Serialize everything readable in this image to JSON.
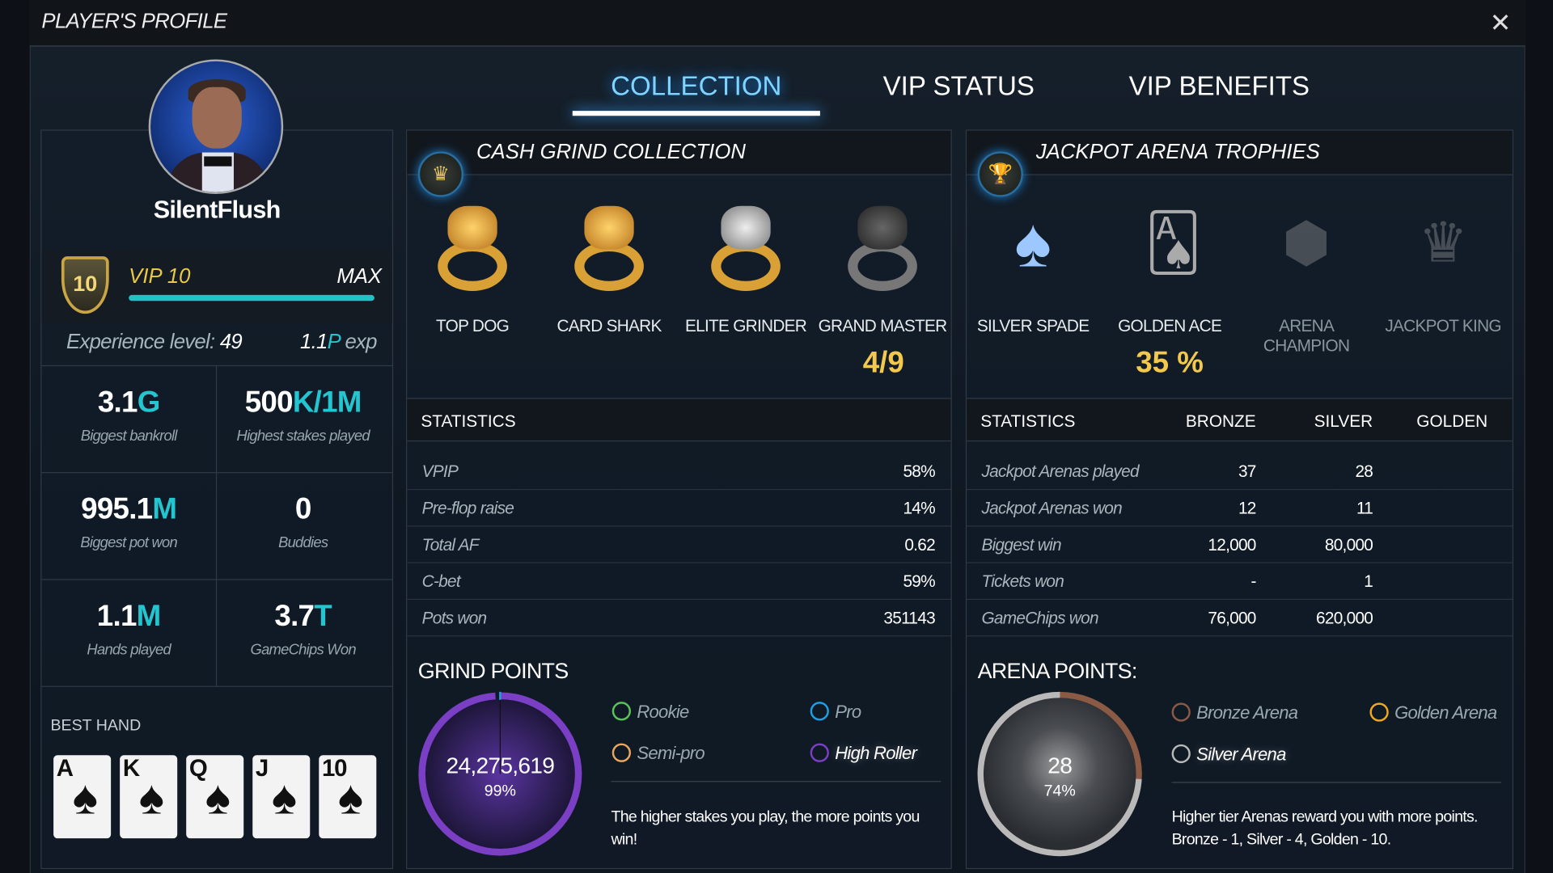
{
  "window": {
    "title": "PLAYER'S PROFILE",
    "close_icon": "close-icon"
  },
  "tabs": [
    {
      "label": "COLLECTION",
      "active": true
    },
    {
      "label": "VIP STATUS",
      "active": false
    },
    {
      "label": "VIP BENEFITS",
      "active": false
    }
  ],
  "profile": {
    "username": "SilentFlush",
    "vip": {
      "badge": "10",
      "label": "VIP 10",
      "max_label": "MAX",
      "progress": 1.0
    },
    "experience": {
      "label": "Experience level:",
      "level": "49",
      "exp_num": "1.1",
      "exp_unit": "P",
      "exp_suffix": " exp"
    },
    "stats": [
      {
        "num": "3.1",
        "unit": "G",
        "label": "Biggest bankroll"
      },
      {
        "num": "500",
        "unit": "K/1M",
        "label": "Highest stakes played"
      },
      {
        "num": "995.1",
        "unit": "M",
        "label": "Biggest pot won"
      },
      {
        "num": "0",
        "unit": "",
        "label": "Buddies"
      },
      {
        "num": "1.1",
        "unit": "M",
        "label": "Hands played"
      },
      {
        "num": "3.7",
        "unit": "T",
        "label": "GameChips Won"
      }
    ],
    "best_hand": {
      "label": "BEST HAND",
      "cards": [
        {
          "rank": "A",
          "suit": "♠"
        },
        {
          "rank": "K",
          "suit": "♠"
        },
        {
          "rank": "Q",
          "suit": "♠"
        },
        {
          "rank": "J",
          "suit": "♠"
        },
        {
          "rank": "10",
          "suit": "♠"
        }
      ]
    }
  },
  "cash_grind": {
    "title": "CASH GRIND COLLECTION",
    "items": [
      {
        "label": "TOP DOG",
        "earned": true
      },
      {
        "label": "CARD SHARK",
        "earned": true
      },
      {
        "label": "ELITE GRINDER",
        "earned": true
      },
      {
        "label": "GRAND MASTER",
        "earned": true
      }
    ],
    "progress": "4/9",
    "stats_header": "STATISTICS",
    "stats": [
      {
        "k": "VPIP",
        "v": "58%"
      },
      {
        "k": "Pre-flop raise",
        "v": "14%"
      },
      {
        "k": "Total AF",
        "v": "0.62"
      },
      {
        "k": "C-bet",
        "v": "59%"
      },
      {
        "k": "Pots won",
        "v": "351143"
      }
    ],
    "points": {
      "title": "GRIND POINTS",
      "value": "24,275,619",
      "percent_label": "99%",
      "percent": 99,
      "ring_color": "#7a3fc4",
      "legend": [
        {
          "label": "Rookie",
          "color": "#5cc45c"
        },
        {
          "label": "Pro",
          "color": "#1ea0e6"
        },
        {
          "label": "Semi-pro",
          "color": "#e8a860"
        },
        {
          "label": "High Roller",
          "color": "#7a3fc4",
          "selected": true
        }
      ],
      "note": "The higher stakes you play, the more points you win!"
    }
  },
  "jackpot": {
    "title": "JACKPOT ARENA TROPHIES",
    "items": [
      {
        "label": "SILVER SPADE",
        "earned": true
      },
      {
        "label": "GOLDEN ACE",
        "earned": true
      },
      {
        "label": "ARENA CHAMPION",
        "earned": false
      },
      {
        "label": "JACKPOT KING",
        "earned": false
      }
    ],
    "progress": "35 %",
    "stats_header": [
      "STATISTICS",
      "BRONZE",
      "SILVER",
      "GOLDEN"
    ],
    "stats": [
      {
        "k": "Jackpot Arenas played",
        "bronze": "37",
        "silver": "28",
        "golden": ""
      },
      {
        "k": "Jackpot Arenas won",
        "bronze": "12",
        "silver": "11",
        "golden": ""
      },
      {
        "k": "Biggest win",
        "bronze": "12,000",
        "silver": "80,000",
        "golden": ""
      },
      {
        "k": "Tickets won",
        "bronze": "-",
        "silver": "1",
        "golden": ""
      },
      {
        "k": "GameChips won",
        "bronze": "76,000",
        "silver": "620,000",
        "golden": ""
      }
    ],
    "points": {
      "title": "ARENA POINTS:",
      "value": "28",
      "percent_label": "74%",
      "percent": 74,
      "ring_color": "#b9b9b9",
      "rest_color": "#8a5a44",
      "legend": [
        {
          "label": "Bronze Arena",
          "color": "#8a5a44"
        },
        {
          "label": "Golden Arena",
          "color": "#f0a820"
        },
        {
          "label": "Silver Arena",
          "color": "#b9b9b9",
          "selected": true
        }
      ],
      "note": "Higher tier Arenas reward you with more points. Bronze - 1, Silver - 4, Golden - 10."
    }
  }
}
